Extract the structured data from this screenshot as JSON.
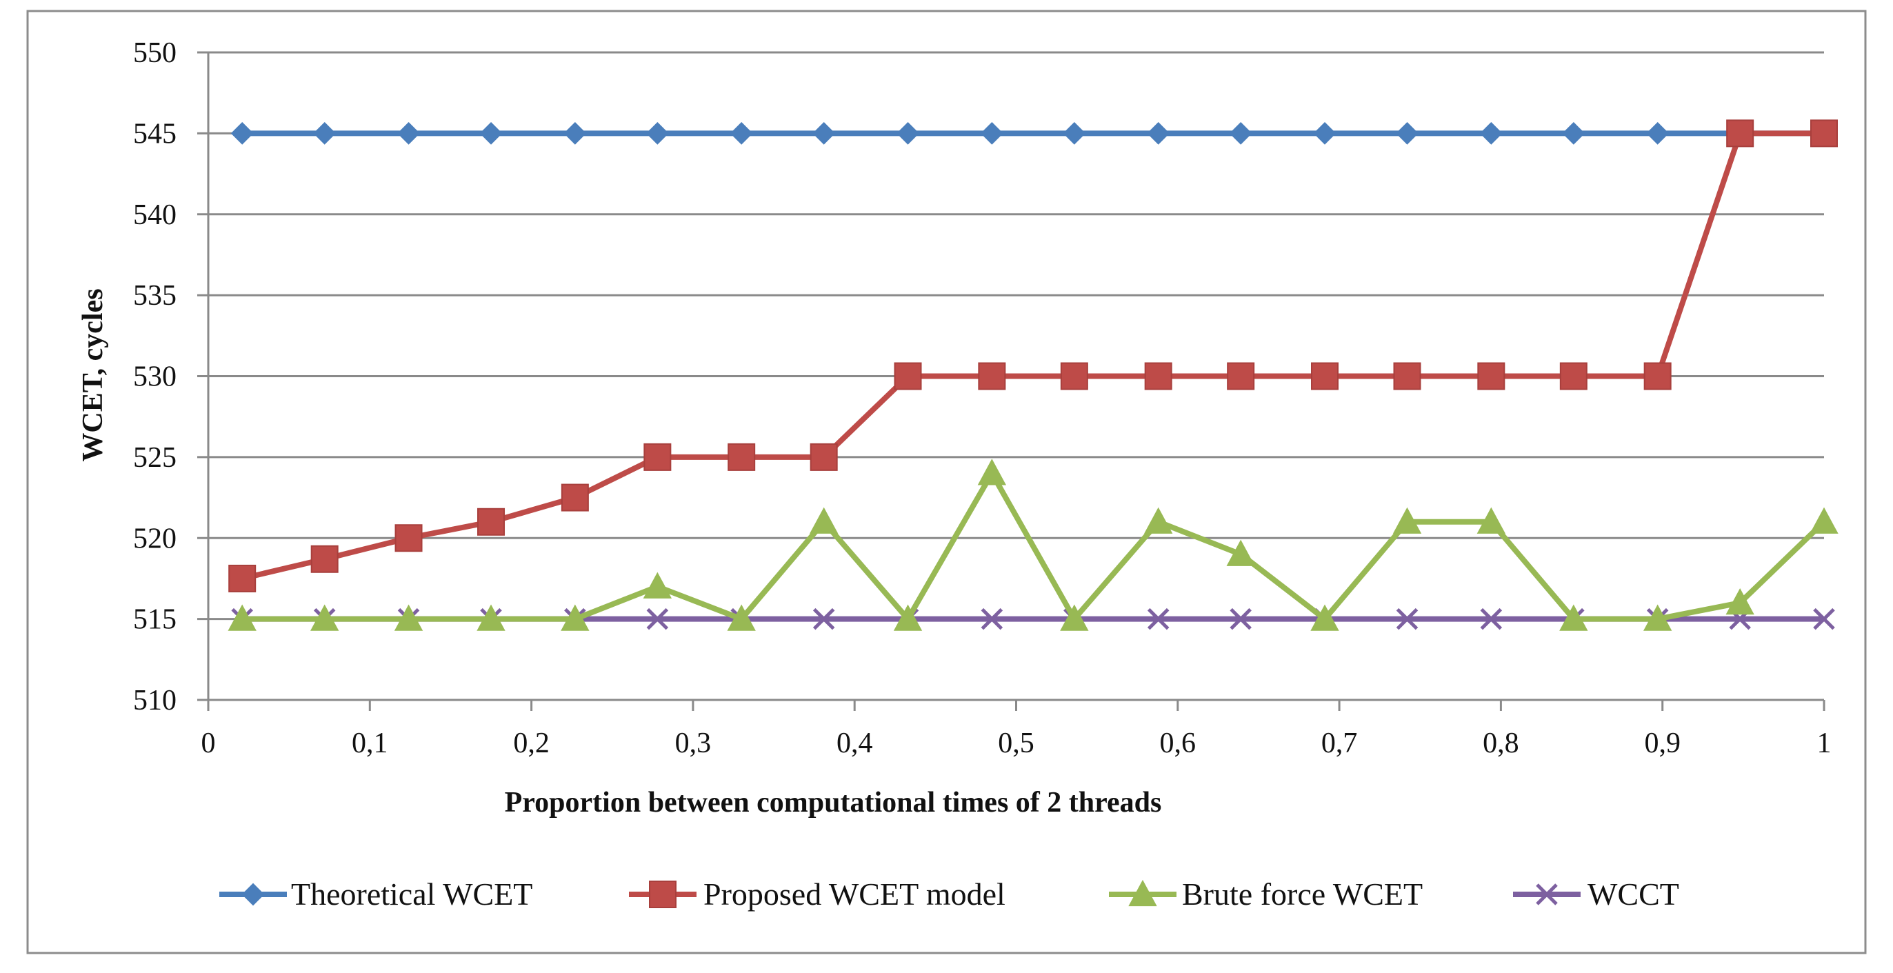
{
  "chart_data": {
    "type": "line",
    "title": "",
    "xlabel": "Proportion  between computational times of 2 threads",
    "ylabel": "WCET, cycles",
    "xlim": [
      0,
      1
    ],
    "ylim": [
      510,
      550
    ],
    "x_ticks": [
      0,
      0.1,
      0.2,
      0.3,
      0.4,
      0.5,
      0.6,
      0.7,
      0.8,
      0.9,
      1
    ],
    "x_tick_labels": [
      "0",
      "0,1",
      "0,2",
      "0,3",
      "0,4",
      "0,5",
      "0,6",
      "0,7",
      "0,8",
      "0,9",
      "1"
    ],
    "y_ticks": [
      510,
      515,
      520,
      525,
      530,
      535,
      540,
      545,
      550
    ],
    "y_tick_labels": [
      "510",
      "515",
      "520",
      "525",
      "530",
      "535",
      "540",
      "545",
      "550"
    ],
    "grid": true,
    "legend_position": "bottom",
    "x": [
      0.021,
      0.072,
      0.124,
      0.175,
      0.227,
      0.278,
      0.33,
      0.381,
      0.433,
      0.485,
      0.536,
      0.588,
      0.639,
      0.691,
      0.742,
      0.794,
      0.845,
      0.897,
      0.948,
      1.0
    ],
    "series": [
      {
        "name": "Theoretical WCET",
        "color": "#4a7ebb",
        "marker": "diamond",
        "values": [
          545,
          545,
          545,
          545,
          545,
          545,
          545,
          545,
          545,
          545,
          545,
          545,
          545,
          545,
          545,
          545,
          545,
          545,
          545,
          545
        ]
      },
      {
        "name": "Proposed WCET model",
        "color": "#be4b48",
        "marker": "square",
        "values": [
          517.5,
          518.7,
          520,
          521,
          522.5,
          525,
          525,
          525,
          530,
          530,
          530,
          530,
          530,
          530,
          530,
          530,
          530,
          530,
          545,
          545
        ]
      },
      {
        "name": "Brute force WCET",
        "color": "#98b954",
        "marker": "triangle",
        "values": [
          515,
          515,
          515,
          515,
          515,
          517,
          515,
          521,
          515,
          524,
          515,
          521,
          519,
          515,
          521,
          521,
          515,
          515,
          516,
          521
        ]
      },
      {
        "name": "WCCT",
        "color": "#7d60a0",
        "marker": "x",
        "values": [
          515,
          515,
          515,
          515,
          515,
          515,
          515,
          515,
          515,
          515,
          515,
          515,
          515,
          515,
          515,
          515,
          515,
          515,
          515,
          515
        ]
      }
    ]
  }
}
